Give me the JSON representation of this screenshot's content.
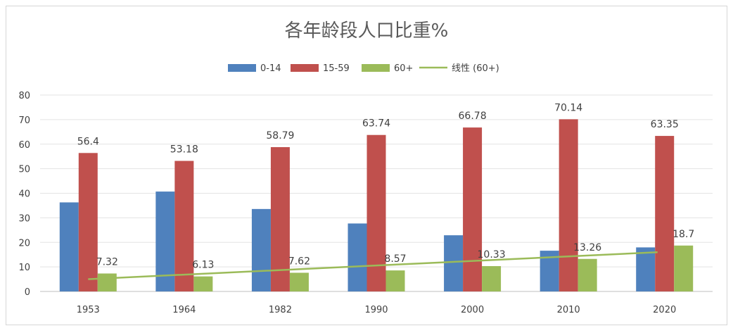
{
  "chart_data": {
    "type": "bar",
    "title": "各年龄段人口比重%",
    "categories": [
      "1953",
      "1964",
      "1982",
      "1990",
      "2000",
      "2010",
      "2020"
    ],
    "series": [
      {
        "name": "0-14",
        "color": "#4f81bd",
        "values": [
          36.28,
          40.69,
          33.59,
          27.69,
          22.89,
          16.6,
          17.95
        ]
      },
      {
        "name": "15-59",
        "color": "#c0504d",
        "values": [
          56.4,
          53.18,
          58.79,
          63.74,
          66.78,
          70.14,
          63.35
        ],
        "labels": [
          "56.4",
          "53.18",
          "58.79",
          "63.74",
          "66.78",
          "70.14",
          "63.35"
        ]
      },
      {
        "name": "60+",
        "color": "#9bbb59",
        "values": [
          7.32,
          6.13,
          7.62,
          8.57,
          10.33,
          13.26,
          18.7
        ],
        "labels": [
          "7.32",
          "6.13",
          "7.62",
          "8.57",
          "10.33",
          "13.26",
          "18.7"
        ]
      }
    ],
    "trendline": {
      "name": "线性 (60+)",
      "color": "#9bbb59",
      "start": 5.0,
      "end": 16.0
    },
    "yticks": [
      "0",
      "10",
      "20",
      "30",
      "40",
      "50",
      "60",
      "70",
      "80"
    ],
    "ylim": [
      0,
      80
    ],
    "grid": true,
    "legend_position": "top"
  }
}
